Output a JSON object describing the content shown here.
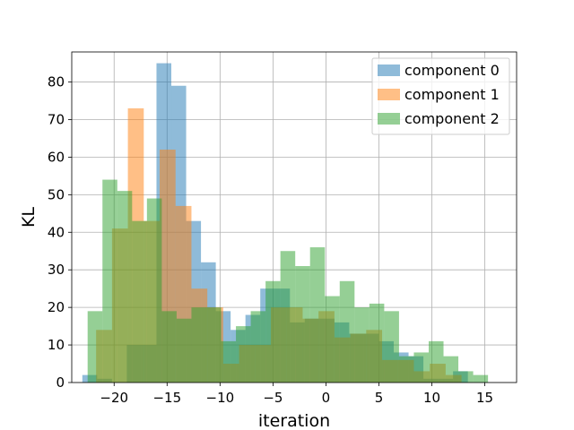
{
  "chart_data": {
    "type": "histogram",
    "title": "",
    "xlabel": "iteration",
    "ylabel": "KL",
    "xlim": [
      -24.0,
      18.0
    ],
    "ylim": [
      0,
      88
    ],
    "xticks": [
      -20,
      -15,
      -10,
      -5,
      0,
      5,
      10,
      15
    ],
    "xtick_labels": [
      "−20",
      "−15",
      "−10",
      "−5",
      "0",
      "5",
      "10",
      "15"
    ],
    "yticks": [
      0,
      10,
      20,
      30,
      40,
      50,
      60,
      70,
      80
    ],
    "ytick_labels": [
      "0",
      "10",
      "20",
      "30",
      "40",
      "50",
      "60",
      "70",
      "80"
    ],
    "grid": true,
    "legend_position": "top-right",
    "alpha": 0.5,
    "series": [
      {
        "name": "component 0",
        "color": "#1f77b4",
        "bin_edges": [
          -23.0,
          -21.6,
          -20.2,
          -18.8,
          -17.4,
          -16.0,
          -14.6,
          -13.2,
          -11.8,
          -10.4,
          -9.0,
          -7.6,
          -6.2,
          -4.8,
          -3.4,
          -2.0,
          -0.6,
          0.8,
          2.2,
          3.6,
          5.0,
          6.4,
          7.8,
          9.2,
          10.6,
          12.0,
          13.4
        ],
        "values": [
          2,
          1,
          0,
          10,
          10,
          85,
          79,
          43,
          32,
          19,
          14,
          18,
          25,
          25,
          16,
          17,
          17,
          16,
          13,
          13,
          11,
          8,
          7,
          1,
          1,
          3
        ]
      },
      {
        "name": "component 1",
        "color": "#ff7f0e",
        "bin_edges": [
          -21.7,
          -20.2,
          -18.7,
          -17.2,
          -15.7,
          -14.2,
          -12.7,
          -11.2,
          -9.7,
          -8.2,
          -6.7,
          -5.2,
          -3.7,
          -2.2,
          -0.7,
          0.8,
          2.3,
          3.8,
          5.3,
          6.8,
          8.3,
          9.8,
          11.3,
          12.8
        ],
        "values": [
          14,
          41,
          73,
          43,
          62,
          47,
          25,
          20,
          5,
          10,
          10,
          20,
          20,
          17,
          19,
          12,
          13,
          14,
          6,
          6,
          3,
          5,
          2
        ]
      },
      {
        "name": "component 2",
        "color": "#2ca02c",
        "bin_edges": [
          -22.5,
          -21.1,
          -19.7,
          -18.3,
          -16.9,
          -15.5,
          -14.1,
          -12.7,
          -11.3,
          -9.9,
          -8.5,
          -7.1,
          -5.7,
          -4.3,
          -2.9,
          -1.5,
          -0.1,
          1.3,
          2.7,
          4.1,
          5.5,
          6.9,
          8.3,
          9.7,
          11.1,
          12.5,
          13.9,
          15.3
        ],
        "values": [
          19,
          54,
          51,
          43,
          49,
          19,
          17,
          20,
          20,
          11,
          15,
          19,
          27,
          35,
          31,
          36,
          23,
          27,
          20,
          21,
          19,
          7,
          8,
          11,
          7,
          3,
          2
        ]
      }
    ]
  }
}
